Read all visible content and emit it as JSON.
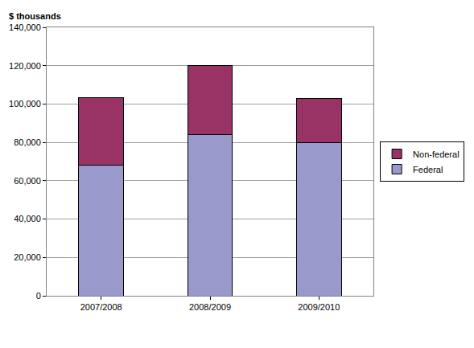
{
  "chart_data": {
    "type": "bar",
    "stacked": true,
    "y_label": "$ thousands",
    "categories": [
      "2007/2008",
      "2008/2009",
      "2009/2010"
    ],
    "series": [
      {
        "name": "Federal",
        "color": "#9999cc",
        "values": [
          68000,
          84000,
          80000
        ]
      },
      {
        "name": "Non-federal",
        "color": "#993366",
        "values": [
          35500,
          36000,
          23000
        ]
      }
    ],
    "ylim": [
      0,
      140000
    ],
    "yticks": [
      0,
      {
        "value": 20000,
        "label": "20,000"
      },
      {
        "value": 40000,
        "label": "40,000"
      },
      {
        "value": 60000,
        "label": "60,000"
      },
      {
        "value": 80000,
        "label": "80,000"
      },
      {
        "value": 100000,
        "label": "100,000"
      },
      {
        "value": 120000,
        "label": "120,000"
      },
      {
        "value": 140000,
        "label": "140,000"
      }
    ],
    "grid": true,
    "legend": "right"
  }
}
